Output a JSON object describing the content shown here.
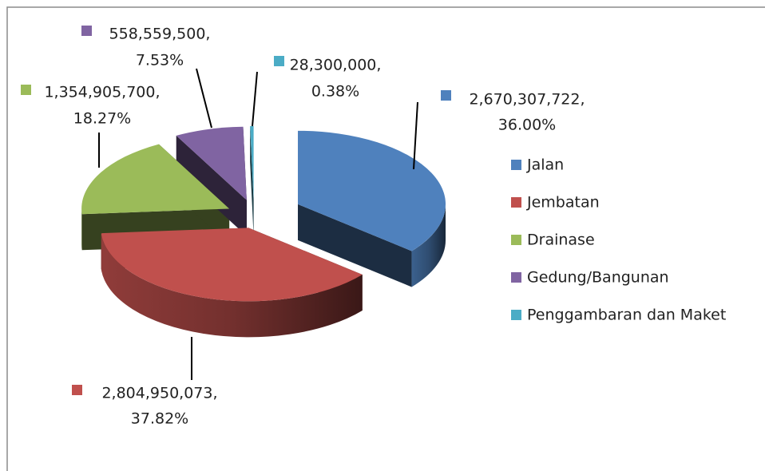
{
  "chart_data": {
    "type": "pie3d",
    "categories": [
      "Jalan",
      "Jembatan",
      "Drainase",
      "Gedung/Bangunan",
      "Penggambaran dan Maket"
    ],
    "values": [
      36.0,
      37.82,
      18.27,
      7.53,
      0.38
    ],
    "value_labels": [
      "36.00%",
      "37.82%",
      "18.27%",
      "7.53%",
      "0.38%"
    ],
    "amounts": [
      2670307722,
      2804950073,
      1354905700,
      558559500,
      28300000
    ],
    "amount_labels": [
      "2,670,307,722,",
      "2,804,950,073,",
      "1,354,905,700,",
      "558,559,500,",
      "28,300,000,"
    ],
    "colors": [
      "#4f81bd",
      "#c0504d",
      "#9bbb59",
      "#8064a2",
      "#4bacc6"
    ],
    "legend": "right"
  }
}
